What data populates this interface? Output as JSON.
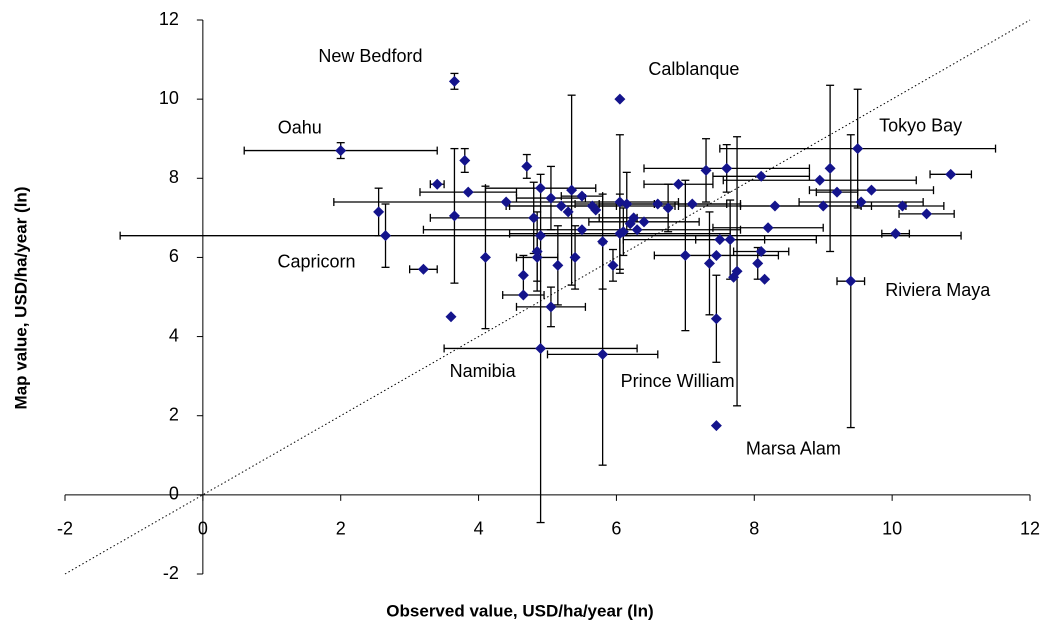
{
  "chart_data": {
    "type": "scatter",
    "x_label": "Observed value, USD/ha/year (ln)",
    "y_label": "Map value, USD/ha/year (ln)",
    "color": "#14148c",
    "xlim": [
      -2,
      12
    ],
    "ylim": [
      -2,
      12
    ],
    "xticks": [
      -2,
      0,
      2,
      4,
      6,
      8,
      10,
      12
    ],
    "yticks": [
      -2,
      0,
      2,
      4,
      6,
      8,
      10,
      12
    ],
    "point_labels": [
      "New Bedford",
      "Oahu",
      "Calblanque",
      "Tokyo Bay",
      "Capricorn",
      "Riviera Maya",
      "Namibia",
      "Prince William",
      "Marsa Alam",
      null,
      null,
      null,
      null,
      null,
      null,
      null,
      null,
      null,
      null,
      null,
      null,
      null,
      null,
      null,
      null,
      null,
      null,
      null,
      null,
      null,
      null,
      null,
      null,
      null,
      null,
      null,
      null,
      null,
      null,
      null,
      null,
      null,
      null,
      null,
      null,
      null,
      null,
      null,
      null,
      null,
      null,
      null,
      null,
      null,
      null,
      null,
      null,
      null,
      null,
      null,
      null,
      null,
      null,
      null,
      null,
      null,
      null,
      null,
      null,
      null,
      null,
      null,
      null,
      null,
      null,
      null,
      null
    ],
    "x": [
      3.65,
      2.0,
      6.05,
      9.5,
      2.65,
      9.4,
      4.9,
      5.8,
      7.45,
      2.55,
      3.2,
      3.4,
      3.6,
      3.65,
      3.8,
      3.85,
      4.1,
      4.4,
      4.65,
      4.65,
      4.7,
      4.8,
      4.85,
      4.85,
      4.9,
      5.05,
      5.05,
      5.15,
      5.2,
      5.3,
      5.35,
      5.4,
      5.5,
      5.5,
      5.65,
      5.7,
      5.8,
      5.95,
      6.05,
      6.05,
      6.1,
      6.15,
      6.2,
      6.25,
      6.3,
      6.4,
      6.6,
      6.75,
      6.9,
      7.0,
      7.1,
      7.3,
      7.35,
      7.45,
      7.45,
      7.5,
      7.6,
      7.65,
      7.7,
      7.75,
      8.1,
      8.05,
      8.1,
      8.15,
      8.2,
      8.3,
      8.95,
      9.0,
      9.1,
      9.2,
      9.55,
      9.7,
      10.05,
      10.15,
      10.5,
      10.85,
      4.9
    ],
    "y": [
      10.45,
      8.7,
      10.0,
      8.75,
      6.55,
      5.4,
      3.7,
      3.55,
      1.75,
      7.15,
      5.7,
      7.85,
      4.5,
      7.05,
      8.45,
      7.65,
      6.0,
      7.4,
      5.55,
      5.05,
      8.3,
      7.0,
      6.0,
      6.15,
      7.75,
      4.75,
      7.5,
      5.8,
      7.3,
      7.15,
      7.7,
      6.0,
      6.7,
      7.55,
      7.3,
      7.2,
      6.4,
      5.8,
      6.6,
      7.4,
      6.65,
      7.35,
      6.85,
      7.0,
      6.7,
      6.9,
      7.35,
      7.25,
      7.85,
      6.05,
      7.35,
      8.2,
      5.85,
      6.05,
      4.45,
      6.45,
      8.25,
      6.45,
      5.5,
      5.65,
      8.05,
      5.85,
      6.15,
      5.45,
      6.75,
      7.3,
      7.95,
      7.3,
      8.25,
      7.65,
      7.4,
      7.7,
      6.6,
      7.3,
      7.1,
      8.1,
      6.55
    ],
    "x_error": [
      null,
      1.4,
      null,
      2.0,
      null,
      0.2,
      1.4,
      0.8,
      null,
      null,
      0.2,
      0.1,
      null,
      null,
      null,
      0.7,
      null,
      2.5,
      null,
      0.3,
      null,
      1.5,
      0.3,
      null,
      0.8,
      0.5,
      0.5,
      null,
      0.8,
      null,
      null,
      null,
      2.3,
      0.3,
      1.2,
      null,
      null,
      null,
      1.6,
      null,
      null,
      0.4,
      null,
      0.5,
      null,
      0.8,
      1.2,
      null,
      0.5,
      null,
      0.5,
      null,
      null,
      0.9,
      null,
      1.4,
      1.2,
      0.5,
      null,
      null,
      0.7,
      null,
      0.4,
      null,
      0.8,
      1.4,
      1.4,
      1.2,
      null,
      0.3,
      0.9,
      0.9,
      0.2,
      0.6,
      0.4,
      0.3,
      6.1
    ],
    "y_error": [
      0.2,
      0.2,
      null,
      1.5,
      0.8,
      3.7,
      4.4,
      2.8,
      null,
      0.6,
      null,
      null,
      null,
      1.7,
      0.3,
      null,
      1.8,
      null,
      0.5,
      null,
      0.3,
      0.9,
      0.6,
      1.0,
      null,
      0.5,
      0.8,
      1.0,
      null,
      null,
      2.4,
      0.8,
      null,
      null,
      null,
      null,
      1.2,
      0.4,
      1.0,
      1.7,
      0.6,
      0.8,
      null,
      null,
      null,
      null,
      null,
      0.6,
      null,
      1.9,
      null,
      0.8,
      1.3,
      null,
      1.1,
      null,
      0.6,
      1.0,
      null,
      3.4,
      null,
      0.4,
      null,
      null,
      null,
      null,
      null,
      null,
      2.1,
      null,
      null,
      null,
      null,
      null,
      null,
      null,
      null
    ]
  }
}
